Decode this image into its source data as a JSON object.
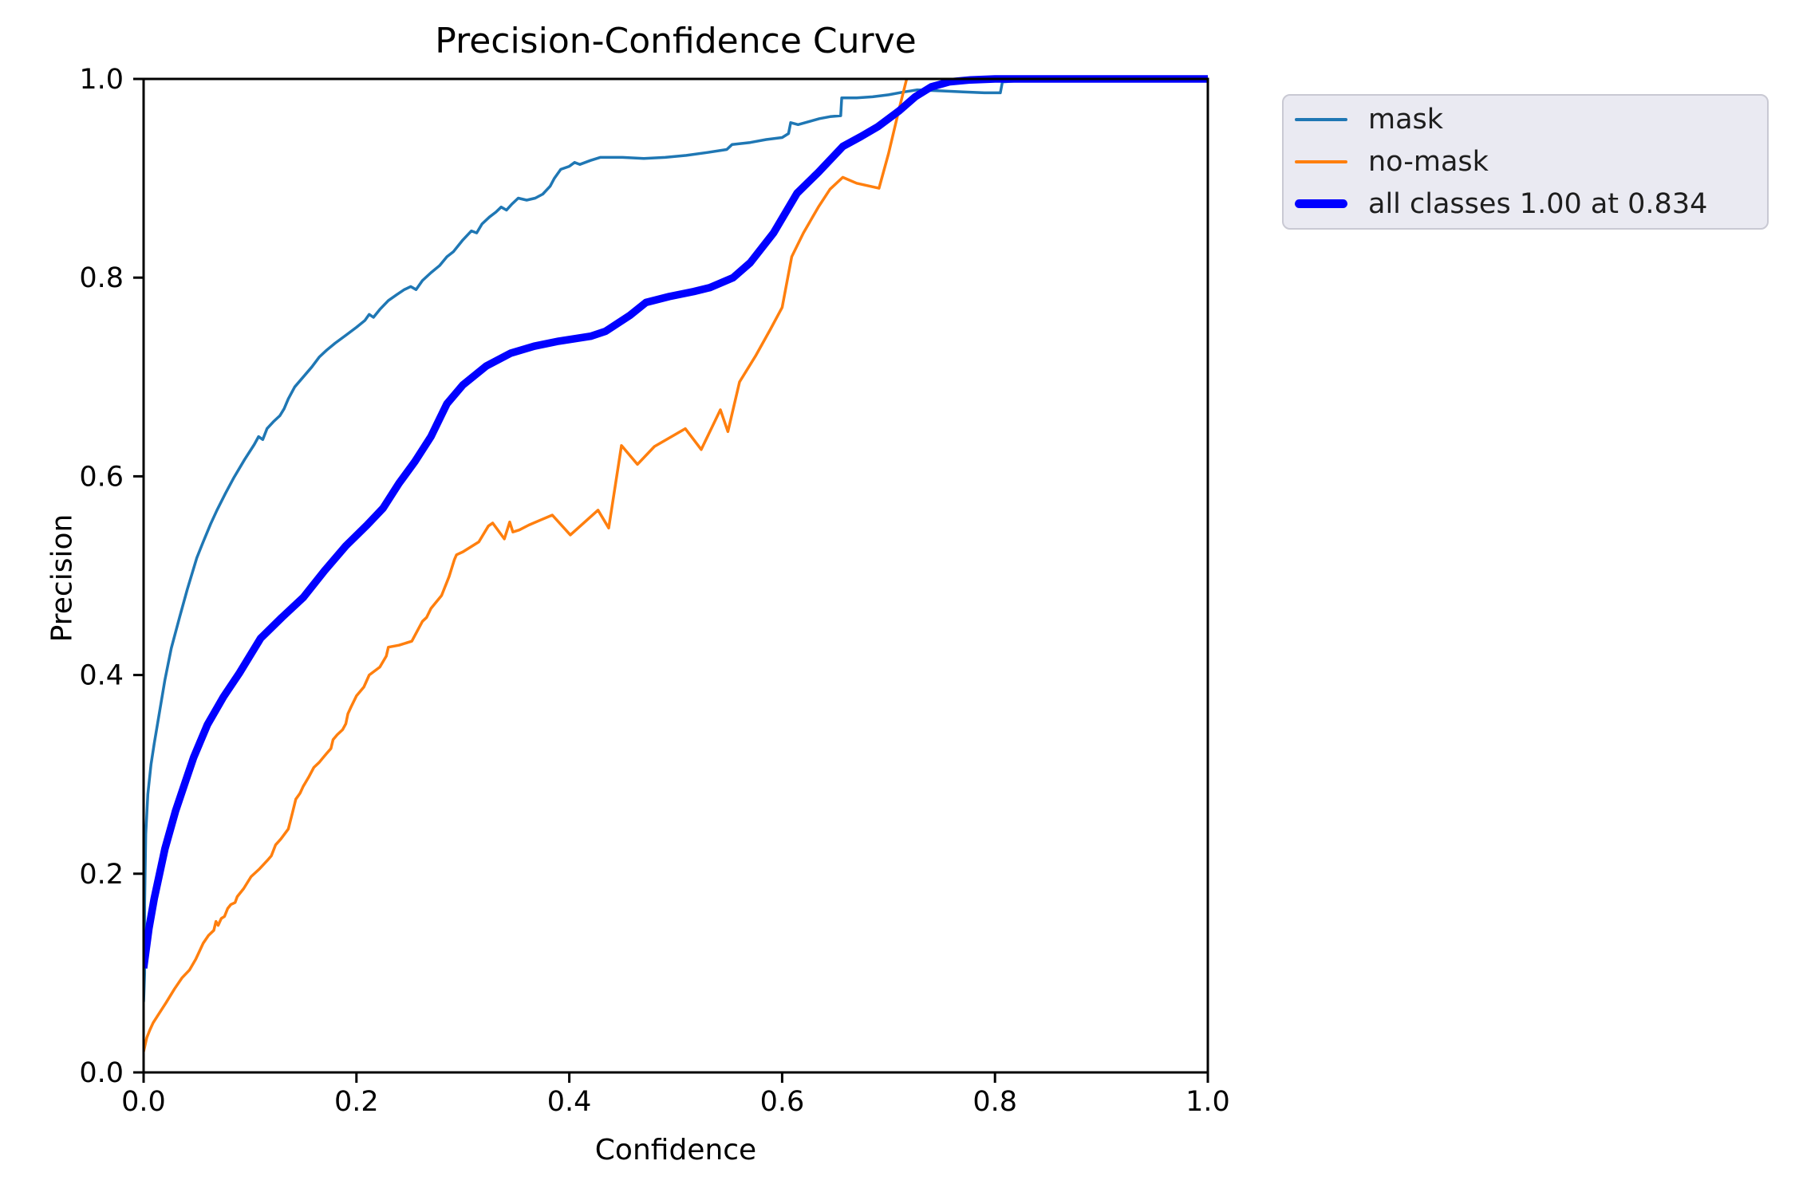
{
  "figure": {
    "title": "Precision-Confidence Curve",
    "xlabel": "Confidence",
    "ylabel": "Precision"
  },
  "chart_data": {
    "type": "line",
    "title": "Precision-Confidence Curve",
    "xlabel": "Confidence",
    "ylabel": "Precision",
    "xlim": [
      0.0,
      1.0
    ],
    "ylim": [
      0.0,
      1.0
    ],
    "x_ticks": [
      "0.0",
      "0.2",
      "0.4",
      "0.6",
      "0.8",
      "1.0"
    ],
    "y_ticks": [
      "0.0",
      "0.2",
      "0.4",
      "0.6",
      "0.8",
      "1.0"
    ],
    "grid": false,
    "legend_position": "upper-right-outside",
    "axis_color": "#000000",
    "series": [
      {
        "name": "mask",
        "color": "#1f77b4",
        "width": 3.5,
        "points": [
          [
            0.0,
            0.071
          ],
          [
            0.001,
            0.1
          ],
          [
            0.001,
            0.17
          ],
          [
            0.002,
            0.24
          ],
          [
            0.004,
            0.28
          ],
          [
            0.007,
            0.31
          ],
          [
            0.01,
            0.331
          ],
          [
            0.015,
            0.363
          ],
          [
            0.02,
            0.395
          ],
          [
            0.026,
            0.427
          ],
          [
            0.034,
            0.459
          ],
          [
            0.041,
            0.486
          ],
          [
            0.05,
            0.518
          ],
          [
            0.056,
            0.534
          ],
          [
            0.063,
            0.552
          ],
          [
            0.069,
            0.566
          ],
          [
            0.077,
            0.583
          ],
          [
            0.085,
            0.599
          ],
          [
            0.095,
            0.617
          ],
          [
            0.104,
            0.632
          ],
          [
            0.108,
            0.64
          ],
          [
            0.112,
            0.637
          ],
          [
            0.116,
            0.648
          ],
          [
            0.122,
            0.655
          ],
          [
            0.128,
            0.661
          ],
          [
            0.132,
            0.668
          ],
          [
            0.136,
            0.678
          ],
          [
            0.142,
            0.69
          ],
          [
            0.15,
            0.7
          ],
          [
            0.158,
            0.71
          ],
          [
            0.165,
            0.72
          ],
          [
            0.172,
            0.727
          ],
          [
            0.18,
            0.734
          ],
          [
            0.19,
            0.742
          ],
          [
            0.2,
            0.75
          ],
          [
            0.208,
            0.757
          ],
          [
            0.212,
            0.763
          ],
          [
            0.216,
            0.76
          ],
          [
            0.222,
            0.768
          ],
          [
            0.23,
            0.777
          ],
          [
            0.238,
            0.783
          ],
          [
            0.245,
            0.788
          ],
          [
            0.251,
            0.791
          ],
          [
            0.256,
            0.788
          ],
          [
            0.262,
            0.797
          ],
          [
            0.27,
            0.805
          ],
          [
            0.278,
            0.812
          ],
          [
            0.285,
            0.821
          ],
          [
            0.291,
            0.826
          ],
          [
            0.3,
            0.838
          ],
          [
            0.308,
            0.847
          ],
          [
            0.313,
            0.845
          ],
          [
            0.318,
            0.854
          ],
          [
            0.325,
            0.861
          ],
          [
            0.331,
            0.866
          ],
          [
            0.336,
            0.871
          ],
          [
            0.341,
            0.868
          ],
          [
            0.346,
            0.874
          ],
          [
            0.352,
            0.88
          ],
          [
            0.36,
            0.878
          ],
          [
            0.368,
            0.88
          ],
          [
            0.375,
            0.884
          ],
          [
            0.382,
            0.892
          ],
          [
            0.386,
            0.9
          ],
          [
            0.392,
            0.909
          ],
          [
            0.4,
            0.912
          ],
          [
            0.405,
            0.916
          ],
          [
            0.41,
            0.914
          ],
          [
            0.42,
            0.918
          ],
          [
            0.429,
            0.921
          ],
          [
            0.45,
            0.921
          ],
          [
            0.47,
            0.92
          ],
          [
            0.49,
            0.921
          ],
          [
            0.51,
            0.923
          ],
          [
            0.53,
            0.926
          ],
          [
            0.548,
            0.929
          ],
          [
            0.553,
            0.934
          ],
          [
            0.57,
            0.936
          ],
          [
            0.585,
            0.939
          ],
          [
            0.6,
            0.941
          ],
          [
            0.606,
            0.945
          ],
          [
            0.608,
            0.956
          ],
          [
            0.615,
            0.954
          ],
          [
            0.625,
            0.957
          ],
          [
            0.635,
            0.96
          ],
          [
            0.645,
            0.962
          ],
          [
            0.655,
            0.963
          ],
          [
            0.656,
            0.981
          ],
          [
            0.67,
            0.981
          ],
          [
            0.685,
            0.982
          ],
          [
            0.7,
            0.984
          ],
          [
            0.715,
            0.987
          ],
          [
            0.727,
            0.989
          ],
          [
            0.75,
            0.988
          ],
          [
            0.77,
            0.987
          ],
          [
            0.79,
            0.986
          ],
          [
            0.805,
            0.986
          ],
          [
            0.807,
            0.997
          ],
          [
            0.82,
            0.998
          ],
          [
            0.835,
            1.0
          ]
        ]
      },
      {
        "name": "no-mask",
        "color": "#ff7f0e",
        "width": 3.5,
        "points": [
          [
            0.0,
            0.021
          ],
          [
            0.003,
            0.035
          ],
          [
            0.006,
            0.043
          ],
          [
            0.009,
            0.05
          ],
          [
            0.015,
            0.06
          ],
          [
            0.021,
            0.07
          ],
          [
            0.029,
            0.084
          ],
          [
            0.036,
            0.095
          ],
          [
            0.043,
            0.103
          ],
          [
            0.049,
            0.114
          ],
          [
            0.056,
            0.13
          ],
          [
            0.061,
            0.138
          ],
          [
            0.066,
            0.143
          ],
          [
            0.068,
            0.152
          ],
          [
            0.07,
            0.148
          ],
          [
            0.073,
            0.155
          ],
          [
            0.076,
            0.157
          ],
          [
            0.079,
            0.165
          ],
          [
            0.082,
            0.169
          ],
          [
            0.086,
            0.171
          ],
          [
            0.088,
            0.177
          ],
          [
            0.094,
            0.185
          ],
          [
            0.101,
            0.197
          ],
          [
            0.109,
            0.205
          ],
          [
            0.116,
            0.213
          ],
          [
            0.12,
            0.218
          ],
          [
            0.124,
            0.229
          ],
          [
            0.129,
            0.235
          ],
          [
            0.136,
            0.245
          ],
          [
            0.14,
            0.262
          ],
          [
            0.143,
            0.275
          ],
          [
            0.147,
            0.281
          ],
          [
            0.15,
            0.288
          ],
          [
            0.155,
            0.297
          ],
          [
            0.16,
            0.307
          ],
          [
            0.165,
            0.312
          ],
          [
            0.168,
            0.316
          ],
          [
            0.172,
            0.321
          ],
          [
            0.176,
            0.326
          ],
          [
            0.178,
            0.335
          ],
          [
            0.182,
            0.34
          ],
          [
            0.187,
            0.345
          ],
          [
            0.19,
            0.351
          ],
          [
            0.192,
            0.361
          ],
          [
            0.195,
            0.368
          ],
          [
            0.2,
            0.379
          ],
          [
            0.207,
            0.388
          ],
          [
            0.212,
            0.4
          ],
          [
            0.222,
            0.408
          ],
          [
            0.228,
            0.419
          ],
          [
            0.23,
            0.428
          ],
          [
            0.24,
            0.43
          ],
          [
            0.252,
            0.434
          ],
          [
            0.262,
            0.454
          ],
          [
            0.266,
            0.458
          ],
          [
            0.27,
            0.467
          ],
          [
            0.28,
            0.48
          ],
          [
            0.287,
            0.499
          ],
          [
            0.292,
            0.516
          ],
          [
            0.294,
            0.521
          ],
          [
            0.3,
            0.524
          ],
          [
            0.315,
            0.534
          ],
          [
            0.324,
            0.55
          ],
          [
            0.328,
            0.553
          ],
          [
            0.339,
            0.537
          ],
          [
            0.344,
            0.554
          ],
          [
            0.347,
            0.544
          ],
          [
            0.353,
            0.546
          ],
          [
            0.362,
            0.551
          ],
          [
            0.373,
            0.556
          ],
          [
            0.384,
            0.561
          ],
          [
            0.401,
            0.541
          ],
          [
            0.427,
            0.566
          ],
          [
            0.437,
            0.548
          ],
          [
            0.449,
            0.631
          ],
          [
            0.464,
            0.612
          ],
          [
            0.48,
            0.63
          ],
          [
            0.509,
            0.648
          ],
          [
            0.524,
            0.627
          ],
          [
            0.542,
            0.667
          ],
          [
            0.549,
            0.645
          ],
          [
            0.56,
            0.695
          ],
          [
            0.575,
            0.721
          ],
          [
            0.589,
            0.748
          ],
          [
            0.6,
            0.77
          ],
          [
            0.609,
            0.821
          ],
          [
            0.62,
            0.845
          ],
          [
            0.634,
            0.871
          ],
          [
            0.645,
            0.889
          ],
          [
            0.657,
            0.901
          ],
          [
            0.67,
            0.895
          ],
          [
            0.691,
            0.89
          ],
          [
            0.7,
            0.925
          ],
          [
            0.71,
            0.97
          ],
          [
            0.717,
            1.0
          ]
        ]
      },
      {
        "name": "all classes 1.00 at 0.834",
        "color": "#0000ff",
        "width": 9.5,
        "points": [
          [
            0.0,
            0.105
          ],
          [
            0.005,
            0.145
          ],
          [
            0.01,
            0.175
          ],
          [
            0.02,
            0.225
          ],
          [
            0.03,
            0.263
          ],
          [
            0.04,
            0.295
          ],
          [
            0.047,
            0.317
          ],
          [
            0.06,
            0.35
          ],
          [
            0.075,
            0.378
          ],
          [
            0.09,
            0.402
          ],
          [
            0.11,
            0.437
          ],
          [
            0.13,
            0.458
          ],
          [
            0.15,
            0.478
          ],
          [
            0.17,
            0.505
          ],
          [
            0.19,
            0.53
          ],
          [
            0.21,
            0.551
          ],
          [
            0.225,
            0.568
          ],
          [
            0.24,
            0.593
          ],
          [
            0.255,
            0.615
          ],
          [
            0.27,
            0.64
          ],
          [
            0.285,
            0.673
          ],
          [
            0.3,
            0.692
          ],
          [
            0.322,
            0.711
          ],
          [
            0.345,
            0.724
          ],
          [
            0.367,
            0.731
          ],
          [
            0.39,
            0.736
          ],
          [
            0.42,
            0.741
          ],
          [
            0.434,
            0.746
          ],
          [
            0.457,
            0.762
          ],
          [
            0.472,
            0.775
          ],
          [
            0.494,
            0.781
          ],
          [
            0.517,
            0.786
          ],
          [
            0.532,
            0.79
          ],
          [
            0.554,
            0.8
          ],
          [
            0.57,
            0.815
          ],
          [
            0.592,
            0.845
          ],
          [
            0.614,
            0.885
          ],
          [
            0.634,
            0.906
          ],
          [
            0.657,
            0.932
          ],
          [
            0.674,
            0.942
          ],
          [
            0.69,
            0.952
          ],
          [
            0.71,
            0.968
          ],
          [
            0.725,
            0.982
          ],
          [
            0.74,
            0.992
          ],
          [
            0.757,
            0.997
          ],
          [
            0.777,
            0.999
          ],
          [
            0.8,
            1.0
          ],
          [
            0.834,
            1.0
          ],
          [
            0.9,
            1.0
          ],
          [
            1.0,
            1.0
          ]
        ]
      }
    ]
  },
  "legend": {
    "entries": [
      "mask",
      "no-mask",
      "all classes 1.00 at 0.834"
    ]
  }
}
